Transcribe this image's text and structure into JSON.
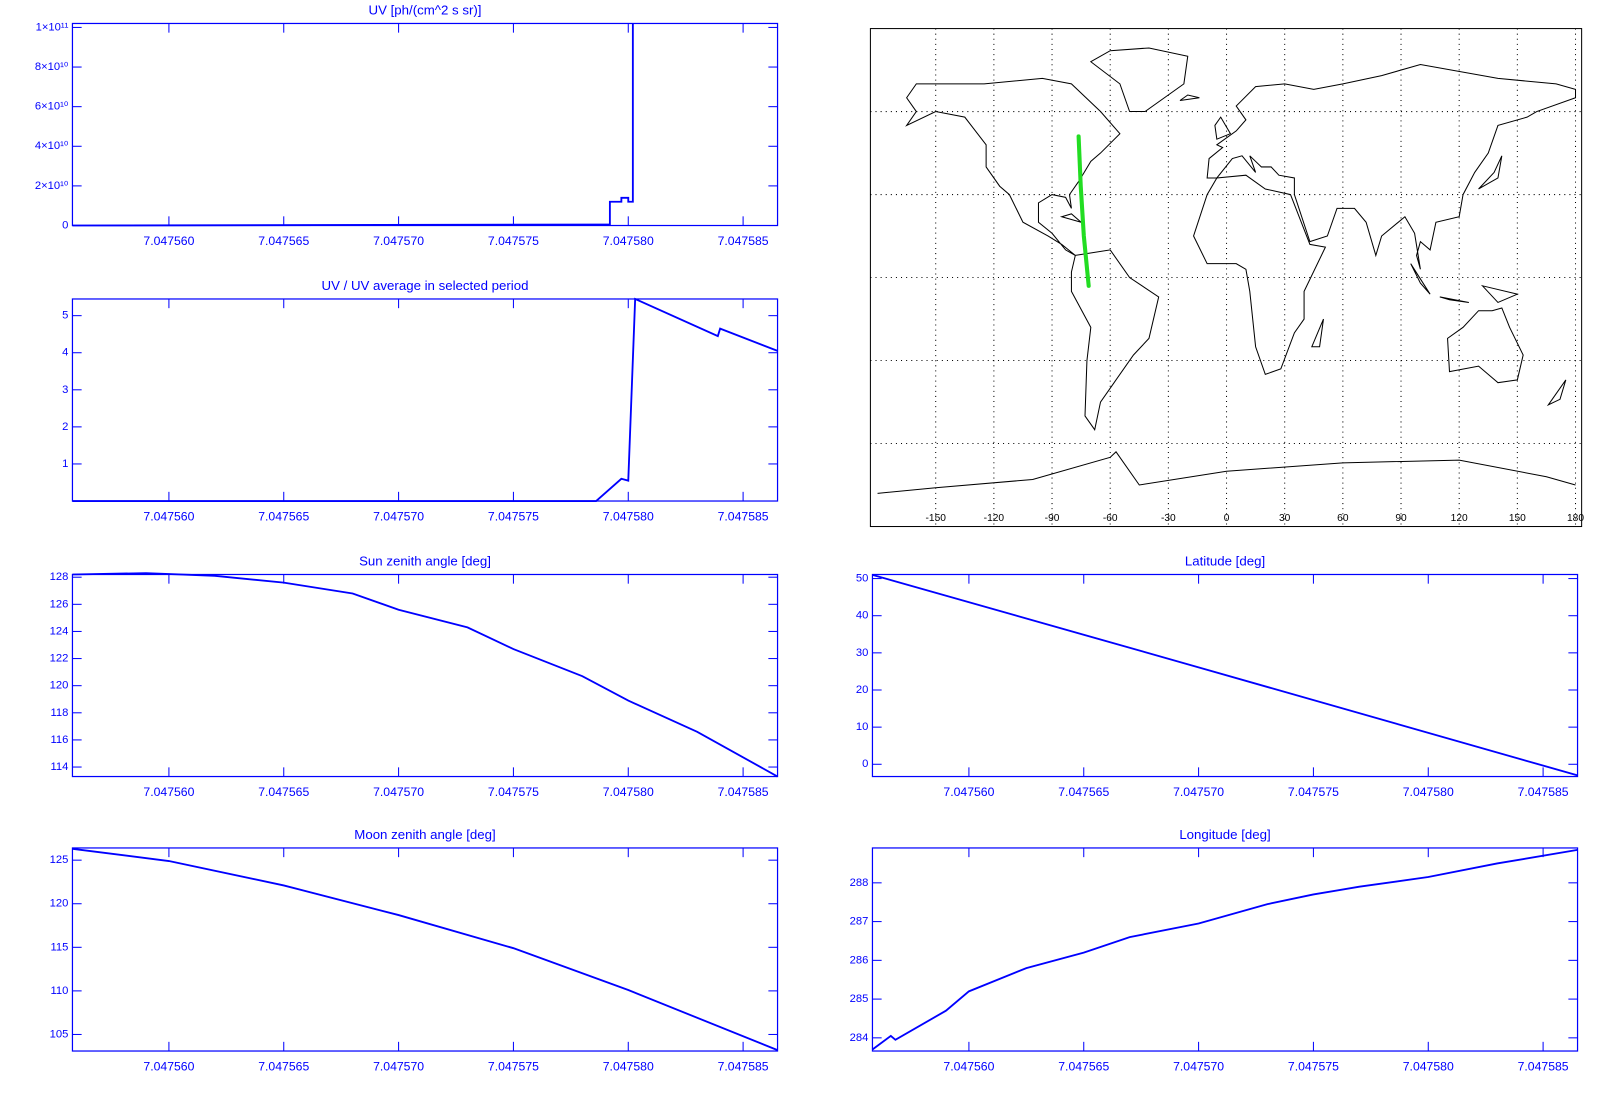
{
  "chart_data": [
    {
      "type": "line",
      "title": "UV [ph/(cm^2 s sr)]",
      "color": "#0000ff",
      "x": [
        7.0475558,
        7.0475788,
        7.0475792,
        7.0475792,
        7.0475797,
        7.0475797,
        7.04758,
        7.04758,
        7.0475802,
        7.0475802
      ],
      "values": [
        0,
        500000000,
        500000000,
        12000000000,
        12000000000,
        14000000000,
        14000000000,
        12000000000,
        12000000000,
        102000000000
      ],
      "xlim": [
        7.0475558,
        7.0475865
      ],
      "ylim": [
        0,
        102000000000
      ],
      "xticks": [
        {
          "value": 7.04756,
          "label": "7.047560"
        },
        {
          "value": 7.047565,
          "label": "7.047565"
        },
        {
          "value": 7.04757,
          "label": "7.047570"
        },
        {
          "value": 7.047575,
          "label": "7.047575"
        },
        {
          "value": 7.04758,
          "label": "7.047580"
        },
        {
          "value": 7.047585,
          "label": "7.047585"
        }
      ],
      "yticks": [
        0,
        {
          "value": 20000000000,
          "label": "2×10¹⁰"
        },
        {
          "value": 40000000000,
          "label": "4×10¹⁰"
        },
        {
          "value": 60000000000,
          "label": "6×10¹⁰"
        },
        {
          "value": 80000000000,
          "label": "8×10¹⁰"
        },
        {
          "value": 100000000000,
          "label": "1×10¹¹"
        }
      ]
    },
    {
      "type": "line",
      "title": "UV / UV average in selected period",
      "color": "#0000ff",
      "x": [
        7.0475558,
        7.0475786,
        7.0475797,
        7.04758,
        7.0475803,
        7.0475839,
        7.047584,
        7.0475865
      ],
      "values": [
        0,
        0,
        0.6,
        0.55,
        5.45,
        4.45,
        4.65,
        4.05
      ],
      "xlim": [
        7.0475558,
        7.0475865
      ],
      "ylim": [
        0,
        5.45
      ],
      "xticks": [
        {
          "value": 7.04756,
          "label": "7.047560"
        },
        {
          "value": 7.047565,
          "label": "7.047565"
        },
        {
          "value": 7.04757,
          "label": "7.047570"
        },
        {
          "value": 7.047575,
          "label": "7.047575"
        },
        {
          "value": 7.04758,
          "label": "7.047580"
        },
        {
          "value": 7.047585,
          "label": "7.047585"
        }
      ],
      "yticks": [
        1,
        2,
        3,
        4,
        5
      ]
    },
    {
      "type": "map",
      "color": "#22dd22",
      "x": [
        -76.3,
        -75.2,
        -73.6,
        -71.1
      ],
      "values": [
        51,
        33,
        15,
        -3
      ],
      "xlim": [
        -180,
        180
      ],
      "ylim": [
        -90,
        90
      ],
      "xticks": [
        -150,
        -120,
        -90,
        -60,
        -30,
        0,
        30,
        60,
        90,
        120,
        150,
        180
      ]
    },
    {
      "type": "line",
      "title": "Sun zenith angle [deg]",
      "color": "#0000ff",
      "x": [
        7.0475558,
        7.047559,
        7.047562,
        7.047565,
        7.047568,
        7.04757,
        7.047573,
        7.047575,
        7.047578,
        7.04758,
        7.047583,
        7.0475865
      ],
      "values": [
        128.2,
        128.3,
        128.1,
        127.6,
        126.8,
        125.6,
        124.3,
        122.7,
        120.7,
        118.9,
        116.6,
        113.3
      ],
      "xlim": [
        7.0475558,
        7.0475865
      ],
      "ylim": [
        113.3,
        128.2
      ],
      "xticks": [
        {
          "value": 7.04756,
          "label": "7.047560"
        },
        {
          "value": 7.047565,
          "label": "7.047565"
        },
        {
          "value": 7.04757,
          "label": "7.047570"
        },
        {
          "value": 7.047575,
          "label": "7.047575"
        },
        {
          "value": 7.04758,
          "label": "7.047580"
        },
        {
          "value": 7.047585,
          "label": "7.047585"
        }
      ],
      "yticks": [
        114,
        116,
        118,
        120,
        122,
        124,
        126,
        128
      ]
    },
    {
      "type": "line",
      "title": "Latitude [deg]",
      "color": "#0000ff",
      "x": [
        7.0475558,
        7.04757,
        7.0475865
      ],
      "values": [
        51,
        26.1,
        -3
      ],
      "xlim": [
        7.0475558,
        7.0475865
      ],
      "ylim": [
        -3.3,
        51.1
      ],
      "xticks": [
        {
          "value": 7.04756,
          "label": "7.047560"
        },
        {
          "value": 7.047565,
          "label": "7.047565"
        },
        {
          "value": 7.04757,
          "label": "7.047570"
        },
        {
          "value": 7.047575,
          "label": "7.047575"
        },
        {
          "value": 7.04758,
          "label": "7.047580"
        },
        {
          "value": 7.047585,
          "label": "7.047585"
        }
      ],
      "yticks": [
        0,
        10,
        20,
        30,
        40,
        50
      ]
    },
    {
      "type": "line",
      "title": "Moon zenith angle [deg]",
      "color": "#0000ff",
      "x": [
        7.0475558,
        7.04756,
        7.047565,
        7.04757,
        7.047575,
        7.04758,
        7.0475865
      ],
      "values": [
        126.3,
        124.9,
        122.1,
        118.7,
        114.9,
        110.1,
        103.2
      ],
      "xlim": [
        7.0475558,
        7.0475865
      ],
      "ylim": [
        103.1,
        126.4
      ],
      "xticks": [
        {
          "value": 7.04756,
          "label": "7.047560"
        },
        {
          "value": 7.047565,
          "label": "7.047565"
        },
        {
          "value": 7.04757,
          "label": "7.047570"
        },
        {
          "value": 7.047575,
          "label": "7.047575"
        },
        {
          "value": 7.04758,
          "label": "7.047580"
        },
        {
          "value": 7.047585,
          "label": "7.047585"
        }
      ],
      "yticks": [
        105,
        110,
        115,
        120,
        125
      ]
    },
    {
      "type": "line",
      "title": "Longitude [deg]",
      "color": "#0000ff",
      "x": [
        7.0475558,
        7.0475566,
        7.0475568,
        7.047559,
        7.04756,
        7.0475625,
        7.047565,
        7.047567,
        7.04757,
        7.047573,
        7.047575,
        7.047577,
        7.04758,
        7.047583,
        7.0475865
      ],
      "values": [
        283.7,
        284.05,
        283.95,
        284.7,
        285.2,
        285.8,
        286.2,
        286.6,
        286.95,
        287.45,
        287.7,
        287.9,
        288.15,
        288.5,
        288.85
      ],
      "xlim": [
        7.0475558,
        7.0475865
      ],
      "ylim": [
        283.66,
        288.9
      ],
      "xticks": [
        {
          "value": 7.04756,
          "label": "7.047560"
        },
        {
          "value": 7.047565,
          "label": "7.047565"
        },
        {
          "value": 7.04757,
          "label": "7.047570"
        },
        {
          "value": 7.047575,
          "label": "7.047575"
        },
        {
          "value": 7.04758,
          "label": "7.047580"
        },
        {
          "value": 7.047585,
          "label": "7.047585"
        }
      ],
      "yticks": [
        284,
        285,
        286,
        287,
        288
      ]
    }
  ]
}
